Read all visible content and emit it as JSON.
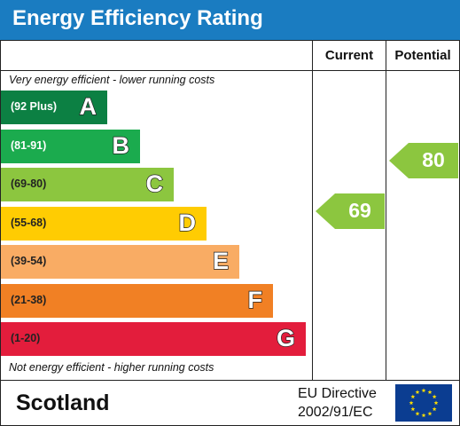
{
  "header": {
    "title": "Energy Efficiency Rating",
    "background": "#1a7cc1"
  },
  "columns": {
    "current": "Current",
    "potential": "Potential"
  },
  "notes": {
    "top": "Very energy efficient - lower running costs",
    "bottom": "Not energy efficient - higher running costs"
  },
  "chart_data": {
    "type": "bar",
    "title": "Energy Efficiency Rating",
    "bands": [
      {
        "range": "(92 Plus)",
        "letter": "A",
        "color": "#0c8043",
        "text_color": "#ffffff"
      },
      {
        "range": "(81-91)",
        "letter": "B",
        "color": "#1bab4e",
        "text_color": "#ffffff"
      },
      {
        "range": "(69-80)",
        "letter": "C",
        "color": "#8cc63f",
        "text_color": "#222222"
      },
      {
        "range": "(55-68)",
        "letter": "D",
        "color": "#ffcc02",
        "text_color": "#222222"
      },
      {
        "range": "(39-54)",
        "letter": "E",
        "color": "#f9ac64",
        "text_color": "#222222"
      },
      {
        "range": "(21-38)",
        "letter": "F",
        "color": "#f18024",
        "text_color": "#222222"
      },
      {
        "range": "(1-20)",
        "letter": "G",
        "color": "#e31d3c",
        "text_color": "#222222"
      }
    ],
    "current": {
      "value": 69,
      "band": "C",
      "color": "#8cc63f"
    },
    "potential": {
      "value": 80,
      "band": "C",
      "color": "#8cc63f"
    }
  },
  "footer": {
    "region": "Scotland",
    "directive_line1": "EU Directive",
    "directive_line2": "2002/91/EC",
    "flag_color": "#0b3d91",
    "star_color": "#ffde00"
  }
}
